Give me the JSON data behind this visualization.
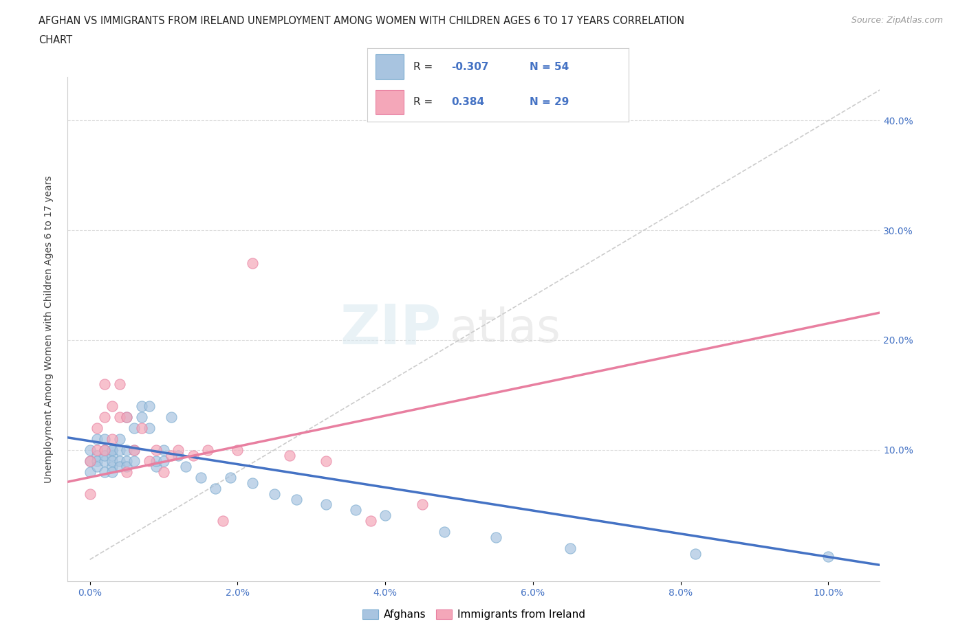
{
  "title_line1": "AFGHAN VS IMMIGRANTS FROM IRELAND UNEMPLOYMENT AMONG WOMEN WITH CHILDREN AGES 6 TO 17 YEARS CORRELATION",
  "title_line2": "CHART",
  "source": "Source: ZipAtlas.com",
  "ylabel": "Unemployment Among Women with Children Ages 6 to 17 years",
  "x_ticks": [
    0.0,
    0.02,
    0.04,
    0.06,
    0.08,
    0.1
  ],
  "x_tick_labels": [
    "0.0%",
    "2.0%",
    "4.0%",
    "6.0%",
    "8.0%",
    "10.0%"
  ],
  "y_ticks": [
    0.0,
    0.1,
    0.2,
    0.3,
    0.4
  ],
  "y_tick_labels_right": [
    "",
    "10.0%",
    "20.0%",
    "30.0%",
    "40.0%"
  ],
  "xlim": [
    -0.003,
    0.107
  ],
  "ylim": [
    -0.02,
    0.44
  ],
  "afghan_color": "#a8c4e0",
  "ireland_color": "#f4a7b9",
  "afghan_edge_color": "#7aabcf",
  "ireland_edge_color": "#e87fa0",
  "afghan_R": -0.307,
  "afghan_N": 54,
  "ireland_R": 0.384,
  "ireland_N": 29,
  "watermark_zip": "ZIP",
  "watermark_atlas": "atlas",
  "legend_label_1": "Afghans",
  "legend_label_2": "Immigrants from Ireland",
  "afghan_scatter_x": [
    0.0,
    0.0,
    0.0,
    0.001,
    0.001,
    0.001,
    0.001,
    0.002,
    0.002,
    0.002,
    0.002,
    0.002,
    0.003,
    0.003,
    0.003,
    0.003,
    0.003,
    0.003,
    0.004,
    0.004,
    0.004,
    0.004,
    0.005,
    0.005,
    0.005,
    0.005,
    0.006,
    0.006,
    0.006,
    0.007,
    0.007,
    0.008,
    0.008,
    0.009,
    0.009,
    0.01,
    0.01,
    0.011,
    0.012,
    0.013,
    0.015,
    0.017,
    0.019,
    0.022,
    0.025,
    0.028,
    0.032,
    0.036,
    0.04,
    0.048,
    0.055,
    0.065,
    0.082,
    0.1
  ],
  "afghan_scatter_y": [
    0.09,
    0.1,
    0.08,
    0.095,
    0.09,
    0.11,
    0.085,
    0.1,
    0.09,
    0.08,
    0.11,
    0.095,
    0.1,
    0.095,
    0.085,
    0.09,
    0.1,
    0.08,
    0.11,
    0.1,
    0.09,
    0.085,
    0.13,
    0.09,
    0.1,
    0.085,
    0.12,
    0.1,
    0.09,
    0.14,
    0.13,
    0.14,
    0.12,
    0.085,
    0.09,
    0.1,
    0.09,
    0.13,
    0.095,
    0.085,
    0.075,
    0.065,
    0.075,
    0.07,
    0.06,
    0.055,
    0.05,
    0.045,
    0.04,
    0.025,
    0.02,
    0.01,
    0.005,
    0.003
  ],
  "ireland_scatter_x": [
    0.0,
    0.0,
    0.001,
    0.001,
    0.002,
    0.002,
    0.002,
    0.003,
    0.003,
    0.004,
    0.004,
    0.005,
    0.005,
    0.006,
    0.007,
    0.008,
    0.009,
    0.01,
    0.011,
    0.012,
    0.014,
    0.016,
    0.018,
    0.02,
    0.022,
    0.027,
    0.032,
    0.038,
    0.045
  ],
  "ireland_scatter_y": [
    0.06,
    0.09,
    0.1,
    0.12,
    0.13,
    0.1,
    0.16,
    0.14,
    0.11,
    0.16,
    0.13,
    0.13,
    0.08,
    0.1,
    0.12,
    0.09,
    0.1,
    0.08,
    0.095,
    0.1,
    0.095,
    0.1,
    0.035,
    0.1,
    0.27,
    0.095,
    0.09,
    0.035,
    0.05
  ],
  "bg_color": "#ffffff",
  "grid_color": "#dddddd",
  "trendline_afghan_color": "#4472c4",
  "trendline_ireland_color": "#e87fa0",
  "diag_line_color": "#cccccc",
  "afghan_trend_x0": 0.0,
  "afghan_trend_y0": 0.108,
  "afghan_trend_x1": 0.107,
  "afghan_trend_y1": -0.005,
  "ireland_trend_x0": 0.0,
  "ireland_trend_y0": 0.075,
  "ireland_trend_x1": 0.107,
  "ireland_trend_y1": 0.225
}
